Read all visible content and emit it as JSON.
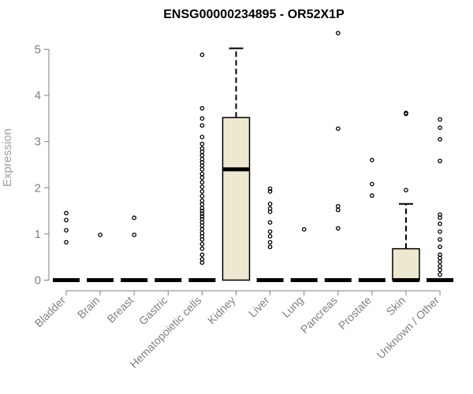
{
  "chart_data": {
    "type": "boxplot",
    "title": "ENSG00000234895 - OR52X1P",
    "ylabel": "Expression",
    "xlabel": "",
    "ylim": [
      0,
      5.3
    ],
    "yticks": [
      0,
      1,
      2,
      3,
      4,
      5
    ],
    "grid": false,
    "colors": {
      "box_fill": "#ede8d0",
      "box_stroke": "#000000",
      "axis": "#808080",
      "text": "#808080"
    },
    "categories": [
      "Bladder",
      "Brain",
      "Breast",
      "Gastric",
      "Hematopoietic cells",
      "Kidney",
      "Liver",
      "Lung",
      "Pancreas",
      "Prostate",
      "Skin",
      "Unknown / Other"
    ],
    "boxes": [
      {
        "category": "Bladder",
        "q1": 0,
        "median": 0,
        "q3": 0,
        "whisker_low": 0,
        "whisker_high": 0,
        "outliers": [
          1.45,
          1.3,
          1.08,
          0.82
        ]
      },
      {
        "category": "Brain",
        "q1": 0,
        "median": 0,
        "q3": 0,
        "whisker_low": 0,
        "whisker_high": 0,
        "outliers": [
          0.98
        ]
      },
      {
        "category": "Breast",
        "q1": 0,
        "median": 0,
        "q3": 0,
        "whisker_low": 0,
        "whisker_high": 0,
        "outliers": [
          1.35,
          0.98
        ]
      },
      {
        "category": "Gastric",
        "q1": 0,
        "median": 0,
        "q3": 0,
        "whisker_low": 0,
        "whisker_high": 0,
        "outliers": []
      },
      {
        "category": "Hematopoietic cells",
        "q1": 0,
        "median": 0,
        "q3": 0,
        "whisker_low": 0,
        "whisker_high": 0,
        "outliers": [
          4.88,
          3.72,
          3.5,
          3.35,
          3.1,
          2.95,
          2.85,
          2.78,
          2.7,
          2.62,
          2.55,
          2.48,
          2.4,
          2.3,
          2.22,
          2.12,
          2.02,
          1.92,
          1.82,
          1.72,
          1.64,
          1.56,
          1.5,
          1.44,
          1.38,
          1.32,
          1.25,
          1.18,
          1.1,
          1.02,
          0.95,
          0.88,
          0.78,
          0.68,
          0.55,
          0.45,
          0.38
        ]
      },
      {
        "category": "Kidney",
        "q1": 0,
        "median": 2.4,
        "q3": 3.52,
        "whisker_low": 0,
        "whisker_high": 5.02,
        "outliers": []
      },
      {
        "category": "Liver",
        "q1": 0,
        "median": 0,
        "q3": 0,
        "whisker_low": 0,
        "whisker_high": 0,
        "outliers": [
          1.98,
          1.92,
          1.65,
          1.55,
          1.48,
          1.25,
          1.05,
          0.95,
          0.82,
          0.72
        ]
      },
      {
        "category": "Lung",
        "q1": 0,
        "median": 0,
        "q3": 0,
        "whisker_low": 0,
        "whisker_high": 0,
        "outliers": [
          1.1
        ]
      },
      {
        "category": "Pancreas",
        "q1": 0,
        "median": 0,
        "q3": 0,
        "whisker_low": 0,
        "whisker_high": 0,
        "outliers": [
          5.35,
          3.28,
          1.6,
          1.52,
          1.12
        ]
      },
      {
        "category": "Prostate",
        "q1": 0,
        "median": 0,
        "q3": 0,
        "whisker_low": 0,
        "whisker_high": 0,
        "outliers": [
          2.6,
          2.08,
          1.83
        ]
      },
      {
        "category": "Skin",
        "q1": 0,
        "median": 0,
        "q3": 0.68,
        "whisker_low": 0,
        "whisker_high": 1.65,
        "outliers": [
          3.62,
          3.6,
          1.95
        ]
      },
      {
        "category": "Unknown / Other",
        "q1": 0,
        "median": 0,
        "q3": 0,
        "whisker_low": 0,
        "whisker_high": 0,
        "outliers": [
          3.48,
          3.3,
          3.05,
          2.58,
          1.42,
          1.35,
          1.22,
          1.05,
          0.88,
          0.72,
          0.55,
          0.48,
          0.4,
          0.3,
          0.22,
          0.12
        ]
      }
    ]
  }
}
